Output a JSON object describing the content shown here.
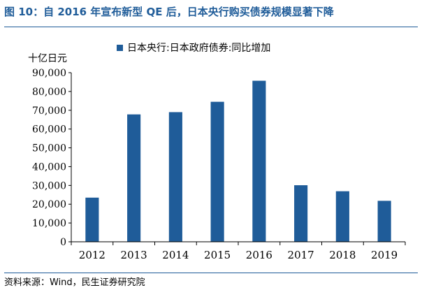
{
  "figure": {
    "title": "图 10：自 2016 年宣布新型 QE 后，日本央行购买债券规模显著下降",
    "source": "资料来源：Wind，民生证券研究院"
  },
  "colors": {
    "accent": "#1f5c99",
    "bar": "#1f5c99"
  },
  "chart_data": {
    "type": "bar",
    "title": "",
    "unit_label": "十亿日元",
    "xlabel": "",
    "ylabel": "十亿日元",
    "categories": [
      "2012",
      "2013",
      "2014",
      "2015",
      "2016",
      "2017",
      "2018",
      "2019"
    ],
    "series": [
      {
        "name": "日本央行:日本政府债券:同比增加",
        "values": [
          23500,
          67800,
          69000,
          74500,
          85700,
          30100,
          26900,
          21800
        ]
      }
    ],
    "ylim": [
      0,
      90000
    ],
    "yticks": [
      0,
      10000,
      20000,
      30000,
      40000,
      50000,
      60000,
      70000,
      80000,
      90000
    ],
    "ytick_labels": [
      "0",
      "10,000",
      "20,000",
      "30,000",
      "40,000",
      "50,000",
      "60,000",
      "70,000",
      "80,000",
      "90,000"
    ],
    "grid": false,
    "legend": "top-center"
  }
}
